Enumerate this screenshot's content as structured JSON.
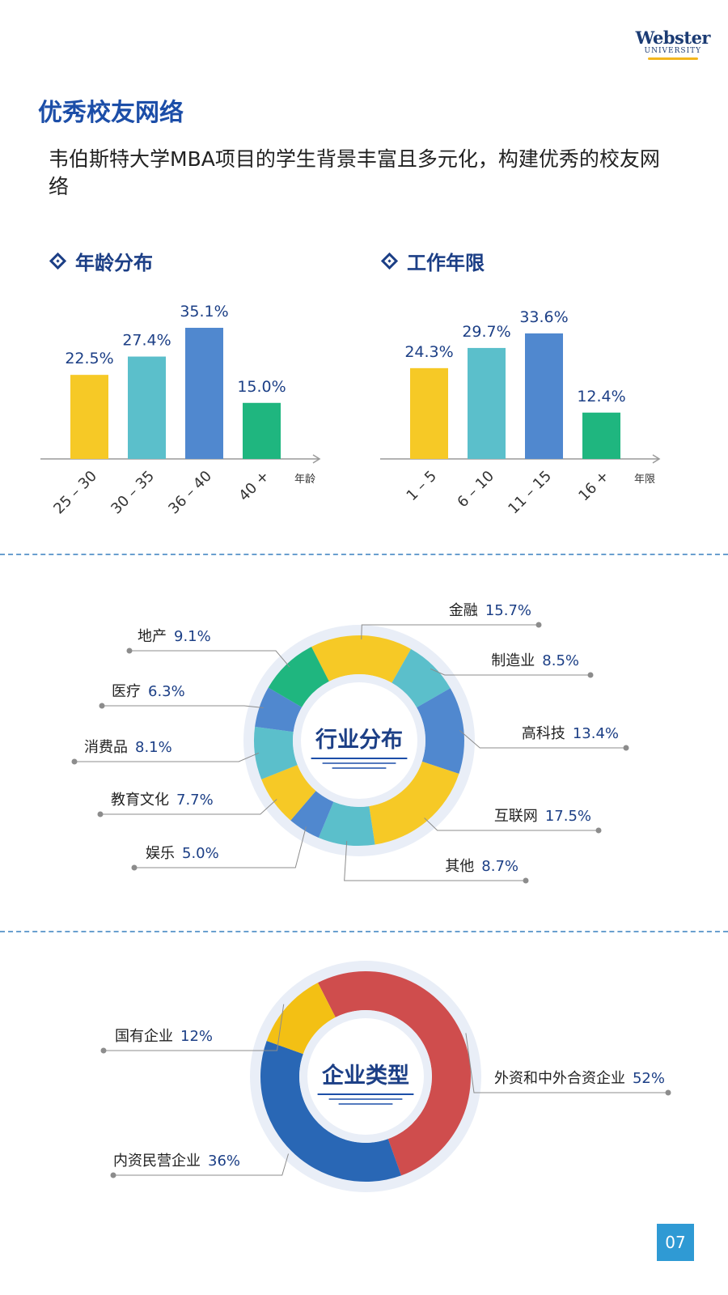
{
  "brand": {
    "name": "Webster",
    "sub": "UNIVERSITY"
  },
  "page_title": "优秀校友网络",
  "intro": "韦伯斯特大学MBA项目的学生背景丰富且多元化，构建优秀的校友网络",
  "page_number": "07",
  "colors": {
    "yellow": "#f6c926",
    "teal": "#5bbfcb",
    "blue": "#5088cf",
    "green": "#1fb67f",
    "red": "#cf4d4d",
    "navy": "#2967b5",
    "gold": "#f3c014"
  },
  "chart_data": [
    {
      "type": "bar",
      "title": "年龄分布",
      "xlabel": "年龄",
      "categories": [
        "25 – 30",
        "30 – 35",
        "36 – 40",
        "40 +"
      ],
      "values": [
        22.5,
        27.4,
        35.1,
        15.0
      ],
      "value_labels": [
        "22.5%",
        "27.4%",
        "35.1%",
        "15.0%"
      ],
      "colors": [
        "#f6c926",
        "#5bbfcb",
        "#5088cf",
        "#1fb67f"
      ],
      "ylim": [
        0,
        40
      ],
      "grid": false
    },
    {
      "type": "bar",
      "title": "工作年限",
      "xlabel": "年限",
      "categories": [
        "1 – 5",
        "6 – 10",
        "11 – 15",
        "16 +"
      ],
      "values": [
        24.3,
        29.7,
        33.6,
        12.4
      ],
      "value_labels": [
        "24.3%",
        "29.7%",
        "33.6%",
        "12.4%"
      ],
      "colors": [
        "#f6c926",
        "#5bbfcb",
        "#5088cf",
        "#1fb67f"
      ],
      "ylim": [
        0,
        40
      ],
      "grid": false
    },
    {
      "type": "pie",
      "title": "行业分布",
      "slices": [
        {
          "name": "金融",
          "value": 15.7,
          "label": "15.7%",
          "color": "#f6c926"
        },
        {
          "name": "制造业",
          "value": 8.5,
          "label": "8.5%",
          "color": "#5bbfcb"
        },
        {
          "name": "高科技",
          "value": 13.4,
          "label": "13.4%",
          "color": "#5088cf"
        },
        {
          "name": "互联网",
          "value": 17.5,
          "label": "17.5%",
          "color": "#f6c926"
        },
        {
          "name": "其他",
          "value": 8.7,
          "label": "8.7%",
          "color": "#5bbfcb"
        },
        {
          "name": "娱乐",
          "value": 5.0,
          "label": "5.0%",
          "color": "#5088cf"
        },
        {
          "name": "教育文化",
          "value": 7.7,
          "label": "7.7%",
          "color": "#f6c926"
        },
        {
          "name": "消费品",
          "value": 8.1,
          "label": "8.1%",
          "color": "#5bbfcb"
        },
        {
          "name": "医疗",
          "value": 6.3,
          "label": "6.3%",
          "color": "#5088cf"
        },
        {
          "name": "地产",
          "value": 9.1,
          "label": "9.1%",
          "color": "#1fb67f"
        }
      ]
    },
    {
      "type": "pie",
      "title": "企业类型",
      "slices": [
        {
          "name": "外资和中外合资企业",
          "value": 52,
          "label": "52%",
          "color": "#cf4d4d"
        },
        {
          "name": "内资民营企业",
          "value": 36,
          "label": "36%",
          "color": "#2967b5"
        },
        {
          "name": "国有企业",
          "value": 12,
          "label": "12%",
          "color": "#f3c014"
        }
      ]
    }
  ]
}
